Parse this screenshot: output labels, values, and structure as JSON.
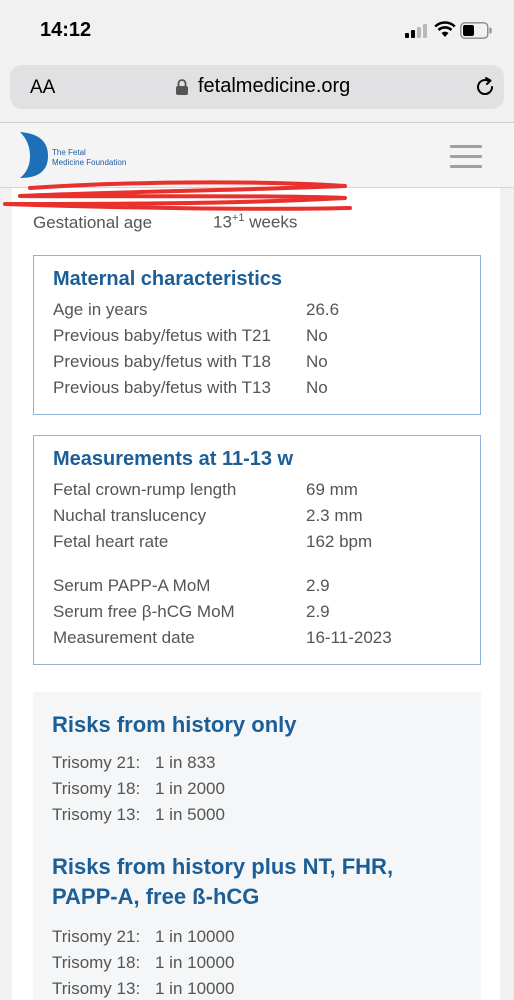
{
  "status_bar": {
    "time": "14:12"
  },
  "browser": {
    "text_size_label": "AA",
    "domain": "fetalmedicine.org"
  },
  "site": {
    "logo_text_line1": "The Fetal",
    "logo_text_line2": "Medicine Foundation"
  },
  "patient": {
    "gestational_age_label": "Gestational age",
    "gestational_age_value": "13",
    "gestational_age_sup": "+1",
    "gestational_age_unit": "weeks"
  },
  "maternal": {
    "title": "Maternal characteristics",
    "rows": [
      {
        "label": "Age in years",
        "value": "26.6"
      },
      {
        "label": "Previous baby/fetus with T21",
        "value": "No"
      },
      {
        "label": "Previous baby/fetus with T18",
        "value": "No"
      },
      {
        "label": "Previous baby/fetus with T13",
        "value": "No"
      }
    ]
  },
  "measurements": {
    "title": "Measurements at 11-13 w",
    "rows": [
      {
        "label": "Fetal crown-rump length",
        "value": "69 mm"
      },
      {
        "label": "Nuchal translucency",
        "value": "2.3 mm"
      },
      {
        "label": "Fetal heart rate",
        "value": "162 bpm"
      },
      {
        "label": "Serum PAPP-A MoM",
        "value": "2.9"
      },
      {
        "label": "Serum free β-hCG MoM",
        "value": "2.9"
      },
      {
        "label": "Measurement date",
        "value": "16-11-2023"
      }
    ]
  },
  "risks_history": {
    "title": "Risks from history only",
    "rows": [
      {
        "label": "Trisomy 21:",
        "value": "1 in 833"
      },
      {
        "label": "Trisomy 18:",
        "value": "1 in 2000"
      },
      {
        "label": "Trisomy 13:",
        "value": "1 in 5000"
      }
    ]
  },
  "risks_combined": {
    "title_line1": "Risks from history plus NT, FHR,",
    "title_line2": "PAPP-A, free ß-hCG",
    "rows": [
      {
        "label": "Trisomy 21:",
        "value": "1 in 10000"
      },
      {
        "label": "Trisomy 18:",
        "value": "1 in 10000"
      },
      {
        "label": "Trisomy 13:",
        "value": "1 in 10000"
      }
    ]
  },
  "colors": {
    "accent": "#1c5e96",
    "panel_border": "#8db3d6",
    "redaction": "#e8302c"
  }
}
